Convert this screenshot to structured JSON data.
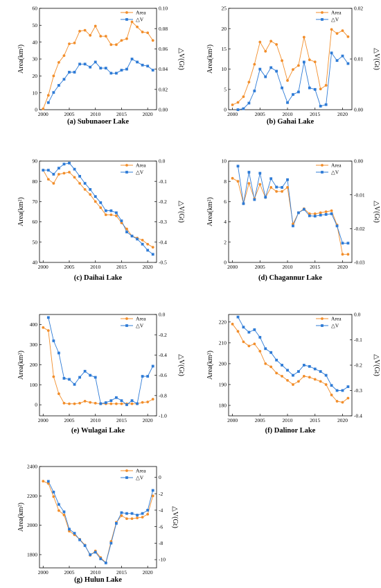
{
  "colors": {
    "area": "#F28E2B",
    "dv": "#2E7BD6"
  },
  "legend": {
    "area": "Area",
    "dv": "△V"
  },
  "chart_data": [
    {
      "type": "line",
      "caption": "(a) Subunaoer Lake",
      "ylabel_left": "Area(km²)",
      "ylabel_right": "△V(Gt)",
      "x_ticks": [
        2000,
        2005,
        2010,
        2015,
        2020
      ],
      "y_left_ticks": [
        "0",
        "10",
        "20",
        "30",
        "40",
        "50",
        "60"
      ],
      "y_right_ticks": [
        "0.00",
        "0.02",
        "0.04",
        "0.06",
        "0.08",
        "0.10"
      ],
      "xlim": [
        1999.3,
        2021.7
      ],
      "ylim_left": [
        0,
        60
      ],
      "ylim_right": [
        0,
        0.1
      ],
      "x_area": [
        2000,
        2001,
        2002,
        2003,
        2004,
        2005,
        2006,
        2007,
        2008,
        2009,
        2010,
        2011,
        2012,
        2013,
        2014,
        2015,
        2016,
        2017,
        2018,
        2019,
        2020,
        2021
      ],
      "area": [
        0.5,
        8.5,
        20,
        28,
        32,
        39,
        39.5,
        46.5,
        47,
        44,
        49.5,
        43.5,
        43.5,
        38.5,
        38.5,
        41,
        42,
        52,
        49,
        46,
        45.5,
        41
      ],
      "x_dv": [
        2001,
        2002,
        2003,
        2004,
        2005,
        2006,
        2007,
        2008,
        2009,
        2010,
        2011,
        2012,
        2013,
        2014,
        2015,
        2016,
        2017,
        2018,
        2019,
        2020,
        2021
      ],
      "dv": [
        0.007,
        0.017,
        0.024,
        0.03,
        0.037,
        0.037,
        0.045,
        0.045,
        0.042,
        0.047,
        0.041,
        0.041,
        0.036,
        0.036,
        0.039,
        0.04,
        0.05,
        0.047,
        0.044,
        0.043,
        0.039
      ]
    },
    {
      "type": "line",
      "caption": "(b) Gahai Lake",
      "ylabel_left": "Area(km²)",
      "ylabel_right": "△V(Gt)",
      "x_ticks": [
        2000,
        2005,
        2010,
        2015,
        2020
      ],
      "y_left_ticks": [
        "0",
        "5",
        "10",
        "15",
        "20",
        "25"
      ],
      "y_right_ticks": [
        "0.00",
        "0.01",
        "0.02"
      ],
      "xlim": [
        1999.3,
        2021.7
      ],
      "ylim_left": [
        0,
        25
      ],
      "ylim_right": [
        0,
        0.02
      ],
      "x_area": [
        2000,
        2001,
        2002,
        2003,
        2004,
        2005,
        2006,
        2007,
        2008,
        2009,
        2010,
        2011,
        2012,
        2013,
        2014,
        2015,
        2016,
        2017,
        2018,
        2019,
        2020,
        2021
      ],
      "area": [
        1.2,
        1.8,
        3.2,
        6.8,
        11.2,
        16.7,
        14.4,
        16.9,
        16.1,
        12.1,
        7.2,
        9.9,
        10.9,
        17.9,
        12.3,
        11.8,
        5.1,
        6.0,
        19.8,
        18.8,
        19.5,
        18.0
      ],
      "x_dv": [
        2001,
        2002,
        2003,
        2004,
        2005,
        2006,
        2007,
        2008,
        2009,
        2010,
        2011,
        2012,
        2013,
        2014,
        2015,
        2016,
        2017,
        2018,
        2019,
        2020,
        2021
      ],
      "dv": [
        0.0,
        0.0002,
        0.0013,
        0.0037,
        0.008,
        0.0065,
        0.0083,
        0.0076,
        0.0043,
        0.0014,
        0.003,
        0.0035,
        0.0094,
        0.0043,
        0.004,
        0.0007,
        0.001,
        0.0112,
        0.0097,
        0.0106,
        0.0091
      ]
    },
    {
      "type": "line",
      "caption": "(c) Daihai Lake",
      "ylabel_left": "Area(km²)",
      "ylabel_right": "△V(Gt)",
      "x_ticks": [
        2000,
        2005,
        2010,
        2015,
        2020
      ],
      "y_left_ticks": [
        "40",
        "50",
        "60",
        "70",
        "80",
        "90"
      ],
      "y_right_ticks": [
        "-0.5",
        "-0.4",
        "-0.3",
        "-0.2",
        "-0.1",
        "0.0"
      ],
      "xlim": [
        1999.3,
        2021.7
      ],
      "ylim_left": [
        40,
        90
      ],
      "ylim_right": [
        -0.5,
        0
      ],
      "x_area": [
        2000,
        2001,
        2002,
        2003,
        2004,
        2005,
        2006,
        2007,
        2008,
        2009,
        2010,
        2011,
        2012,
        2013,
        2014,
        2015,
        2016,
        2017,
        2018,
        2019,
        2020,
        2021
      ],
      "area": [
        85.5,
        81,
        79,
        83.5,
        84,
        84.5,
        82,
        79,
        76,
        73.5,
        70,
        67,
        63.5,
        63.5,
        63,
        59.5,
        56.5,
        53,
        52,
        51,
        49,
        47.5
      ],
      "x_dv": [
        2000,
        2001,
        2002,
        2003,
        2004,
        2005,
        2006,
        2007,
        2008,
        2009,
        2010,
        2011,
        2012,
        2013,
        2014,
        2015,
        2016,
        2017,
        2018,
        2019,
        2020,
        2021
      ],
      "dv": [
        -0.045,
        -0.045,
        -0.065,
        -0.035,
        -0.015,
        -0.01,
        -0.04,
        -0.075,
        -0.11,
        -0.14,
        -0.175,
        -0.205,
        -0.245,
        -0.245,
        -0.255,
        -0.295,
        -0.35,
        -0.37,
        -0.385,
        -0.41,
        -0.44,
        -0.46
      ]
    },
    {
      "type": "line",
      "caption": "(d) Chagannur Lake",
      "ylabel_left": "Area(km²)",
      "ylabel_right": "△V(Gt)",
      "x_ticks": [
        2000,
        2005,
        2010,
        2015,
        2020
      ],
      "y_left_ticks": [
        "0",
        "2",
        "4",
        "6",
        "8",
        "10"
      ],
      "y_right_ticks": [
        "-0.03",
        "-0.02",
        "-0.01",
        "0.00"
      ],
      "xlim": [
        1999.3,
        2021.7
      ],
      "ylim_left": [
        0,
        10
      ],
      "ylim_right": [
        -0.03,
        0
      ],
      "x_area": [
        2000,
        2001,
        2002,
        2003,
        2004,
        2005,
        2006,
        2007,
        2008,
        2009,
        2010,
        2011,
        2012,
        2013,
        2014,
        2015,
        2016,
        2017,
        2018,
        2019,
        2020,
        2021
      ],
      "area": [
        8.3,
        8.0,
        5.8,
        7.8,
        6.3,
        7.7,
        6.4,
        7.4,
        7.0,
        7.0,
        7.4,
        3.8,
        4.9,
        5.3,
        4.8,
        4.8,
        4.9,
        5.0,
        5.1,
        3.7,
        0.8,
        0.8
      ],
      "x_dv": [
        2001,
        2002,
        2003,
        2004,
        2005,
        2006,
        2007,
        2008,
        2009,
        2010,
        2011,
        2012,
        2013,
        2014,
        2015,
        2016,
        2017,
        2018,
        2019,
        2020,
        2021
      ],
      "dv": [
        -0.0015,
        -0.0126,
        -0.0033,
        -0.0114,
        -0.0036,
        -0.0107,
        -0.0052,
        -0.0077,
        -0.0078,
        -0.0055,
        -0.0192,
        -0.0153,
        -0.0143,
        -0.0162,
        -0.0163,
        -0.016,
        -0.0158,
        -0.0156,
        -0.0192,
        -0.0243,
        -0.0243
      ]
    },
    {
      "type": "line",
      "caption": "(e) Wulagai Lake",
      "ylabel_left": "Area(km²)",
      "ylabel_right": "△V(Gt)",
      "x_ticks": [
        2000,
        2005,
        2010,
        2015,
        2020
      ],
      "y_left_ticks": [
        "0",
        "100",
        "200",
        "300",
        "400"
      ],
      "y_right_ticks": [
        "-1.0",
        "-0.8",
        "-0.6",
        "-0.4",
        "-0.2",
        "0.0"
      ],
      "xlim": [
        1999.3,
        2021.7
      ],
      "ylim_left": [
        -55,
        450
      ],
      "ylim_right": [
        -1.0,
        0
      ],
      "x_area": [
        2000,
        2001,
        2002,
        2003,
        2004,
        2005,
        2006,
        2007,
        2008,
        2009,
        2010,
        2011,
        2012,
        2013,
        2014,
        2015,
        2016,
        2017,
        2018,
        2019,
        2020,
        2021
      ],
      "area": [
        385,
        370,
        140,
        55,
        8,
        5,
        5,
        8,
        18,
        12,
        8,
        5,
        5,
        5,
        5,
        5,
        5,
        5,
        5,
        12,
        14,
        28
      ],
      "x_dv": [
        2001,
        2002,
        2003,
        2004,
        2005,
        2006,
        2007,
        2008,
        2009,
        2010,
        2011,
        2012,
        2013,
        2014,
        2015,
        2016,
        2017,
        2018,
        2019,
        2020,
        2021
      ],
      "dv": [
        -0.03,
        -0.26,
        -0.38,
        -0.63,
        -0.64,
        -0.69,
        -0.62,
        -0.56,
        -0.6,
        -0.62,
        -0.88,
        -0.87,
        -0.85,
        -0.82,
        -0.85,
        -0.89,
        -0.85,
        -0.88,
        -0.61,
        -0.61,
        -0.51
      ]
    },
    {
      "type": "line",
      "caption": "(f) Dalinor Lake",
      "ylabel_left": "Area(km²)",
      "ylabel_right": "△V(Gt)",
      "x_ticks": [
        2000,
        2005,
        2010,
        2015,
        2020
      ],
      "y_left_ticks": [
        "180",
        "190",
        "200",
        "210",
        "220"
      ],
      "y_right_ticks": [
        "-0.4",
        "-0.3",
        "-0.2",
        "-0.1",
        "0.0"
      ],
      "xlim": [
        1999.3,
        2021.7
      ],
      "ylim_left": [
        175,
        223.6
      ],
      "ylim_right": [
        -0.4,
        0
      ],
      "x_area": [
        2000,
        2001,
        2002,
        2003,
        2004,
        2005,
        2006,
        2007,
        2008,
        2009,
        2010,
        2011,
        2012,
        2013,
        2014,
        2015,
        2016,
        2017,
        2018,
        2019,
        2020,
        2021
      ],
      "area": [
        219,
        215.5,
        210.5,
        208.5,
        209.5,
        206,
        200,
        198.5,
        195.5,
        194,
        192,
        190,
        191.5,
        194,
        193.5,
        192.5,
        191.5,
        190,
        185,
        182,
        181.5,
        183.5
      ],
      "x_dv": [
        2001,
        2002,
        2003,
        2004,
        2005,
        2006,
        2007,
        2008,
        2009,
        2010,
        2011,
        2012,
        2013,
        2014,
        2015,
        2016,
        2017,
        2018,
        2019,
        2020,
        2021
      ],
      "dv": [
        -0.01,
        -0.05,
        -0.07,
        -0.06,
        -0.09,
        -0.135,
        -0.15,
        -0.18,
        -0.2,
        -0.22,
        -0.24,
        -0.225,
        -0.2,
        -0.205,
        -0.215,
        -0.225,
        -0.24,
        -0.28,
        -0.3,
        -0.3,
        -0.285
      ]
    },
    {
      "type": "line",
      "caption": "(g) Hulun Lake",
      "ylabel_left": "Area(km²)",
      "ylabel_right": "△V(Gt)",
      "x_ticks": [
        2000,
        2005,
        2010,
        2015,
        2020
      ],
      "y_left_ticks": [
        "1800",
        "2000",
        "2200",
        "2400"
      ],
      "y_right_ticks": [
        "-10",
        "-8",
        "-6",
        "-4",
        "-2",
        "0"
      ],
      "xlim": [
        1999.3,
        2021.7
      ],
      "ylim_left": [
        1710,
        2400
      ],
      "ylim_right": [
        -11,
        1.3
      ],
      "x_area": [
        2000,
        2001,
        2002,
        2003,
        2004,
        2005,
        2006,
        2007,
        2008,
        2009,
        2010,
        2011,
        2012,
        2013,
        2014,
        2015,
        2016,
        2017,
        2018,
        2019,
        2020,
        2021
      ],
      "area": [
        2300,
        2285,
        2195,
        2100,
        2070,
        1960,
        1935,
        1905,
        1865,
        1795,
        1825,
        1780,
        1745,
        1890,
        2020,
        2065,
        2045,
        2045,
        2050,
        2055,
        2075,
        2200
      ],
      "x_dv": [
        2001,
        2002,
        2003,
        2004,
        2005,
        2006,
        2007,
        2008,
        2009,
        2010,
        2011,
        2012,
        2013,
        2014,
        2015,
        2016,
        2017,
        2018,
        2019,
        2020,
        2021
      ],
      "dv": [
        -0.5,
        -1.8,
        -3.3,
        -4.2,
        -6.3,
        -6.8,
        -7.6,
        -8.3,
        -9.4,
        -9.1,
        -9.9,
        -10.4,
        -8.0,
        -5.6,
        -4.3,
        -4.4,
        -4.4,
        -4.6,
        -4.4,
        -4.0,
        -1.6
      ]
    }
  ]
}
